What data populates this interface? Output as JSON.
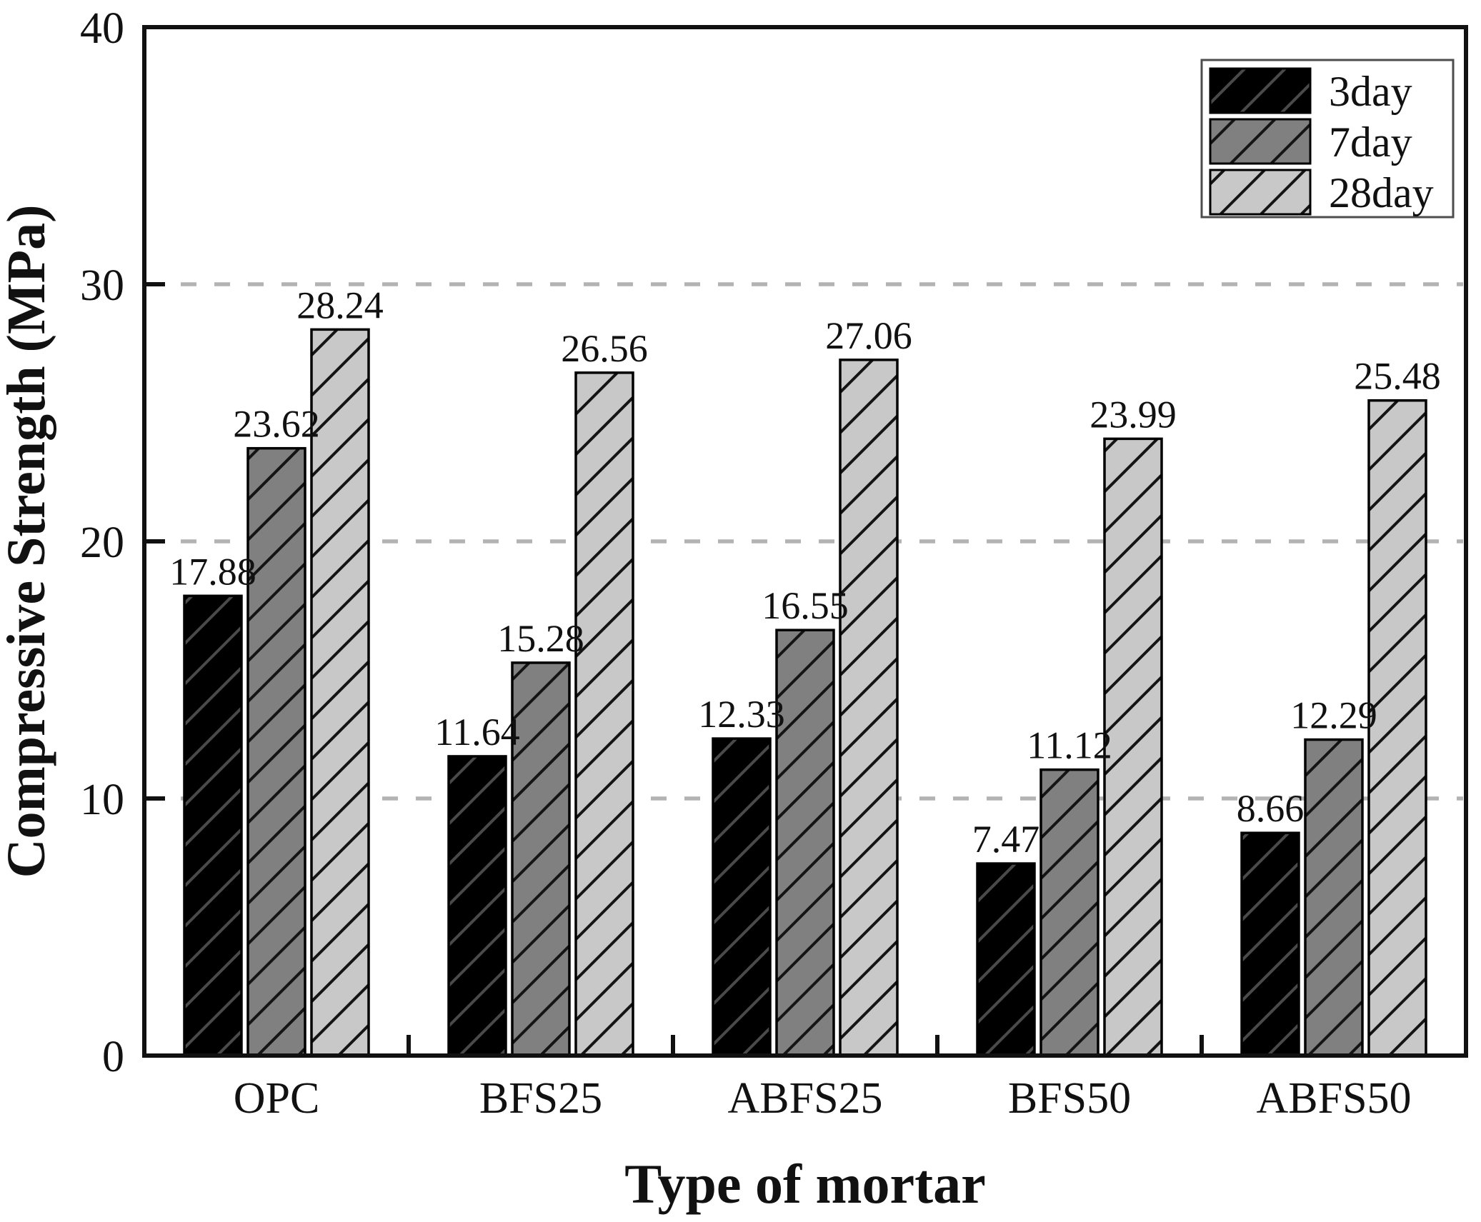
{
  "chart_data": {
    "type": "bar",
    "title": "",
    "xlabel": "Type of mortar",
    "ylabel": "Compressive Strength (MPa)",
    "ylim": [
      0,
      40
    ],
    "ytick_values": [
      0,
      10,
      20,
      30,
      40
    ],
    "yticks": [
      "0",
      "10",
      "20",
      "30",
      "40"
    ],
    "gridline_values": [
      10,
      20,
      30
    ],
    "grid_style": "dashed",
    "legend_position": "top-right-inside",
    "categories": [
      "OPC",
      "BFS25",
      "ABFS25",
      "BFS50",
      "ABFS50"
    ],
    "series": [
      {
        "name": "3day",
        "values": [
          17.88,
          11.64,
          12.33,
          7.47,
          8.66
        ],
        "labels": [
          "17.88",
          "11.64",
          "12.33",
          "7.47",
          "8.66"
        ],
        "fill": "#000000",
        "hatch": "#4a4a4a"
      },
      {
        "name": "7day",
        "values": [
          23.62,
          15.28,
          16.55,
          11.12,
          12.29
        ],
        "labels": [
          "23.62",
          "15.28",
          "16.55",
          "11.12",
          "12.29"
        ],
        "fill": "#808080",
        "hatch": "#141414"
      },
      {
        "name": "28day",
        "values": [
          28.24,
          26.56,
          27.06,
          23.99,
          25.48
        ],
        "labels": [
          "28.24",
          "26.56",
          "27.06",
          "23.99",
          "25.48"
        ],
        "fill": "#c8c8c8",
        "hatch": "#141414"
      }
    ],
    "hatch_style": "forward-diagonal",
    "colors": {
      "background": "#ffffff",
      "frame": "#111111",
      "grid": "#b3b3b3",
      "text": "#111111",
      "legend_border": "#4d4d4d"
    }
  }
}
